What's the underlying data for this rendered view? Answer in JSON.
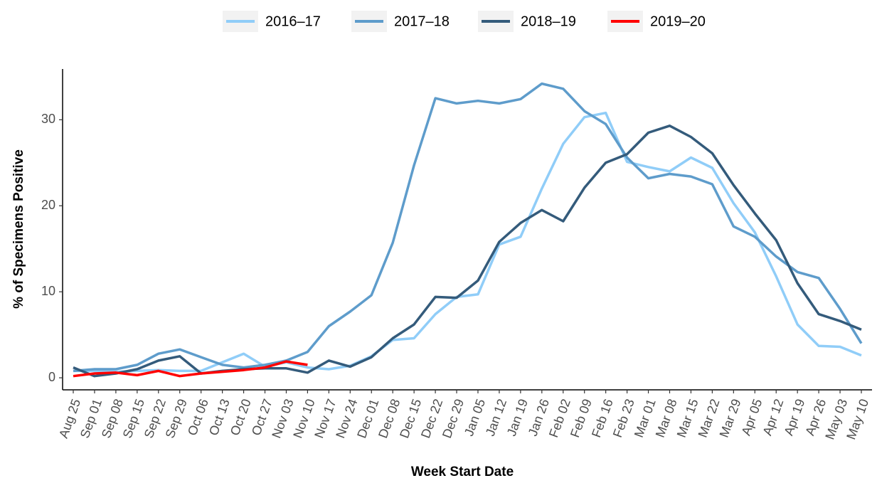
{
  "chart_data": {
    "type": "line",
    "x_label": "Week Start Date",
    "y_label": "% of Specimens Positive",
    "categories": [
      "Aug 25",
      "Sep 01",
      "Sep 08",
      "Sep 15",
      "Sep 22",
      "Sep 29",
      "Oct 06",
      "Oct 13",
      "Oct 20",
      "Oct 27",
      "Nov 03",
      "Nov 10",
      "Nov 17",
      "Nov 24",
      "Dec 01",
      "Dec 08",
      "Dec 15",
      "Dec 22",
      "Dec 29",
      "Jan 05",
      "Jan 12",
      "Jan 19",
      "Jan 26",
      "Feb 02",
      "Feb 09",
      "Feb 16",
      "Feb 23",
      "Mar 01",
      "Mar 08",
      "Mar 15",
      "Mar 22",
      "Mar 29",
      "Apr 05",
      "Apr 12",
      "Apr 19",
      "Apr 26",
      "May 03",
      "May 10"
    ],
    "series": [
      {
        "name": "2016–17",
        "color": "#90cdf8",
        "values": [
          0.8,
          0.8,
          0.7,
          0.8,
          0.9,
          0.8,
          0.8,
          1.8,
          2.8,
          1.3,
          1.8,
          1.2,
          1.0,
          1.4,
          2.5,
          4.4,
          4.6,
          7.4,
          9.4,
          9.7,
          15.5,
          16.4,
          22.0,
          27.2,
          30.3,
          30.8,
          25.1,
          24.5,
          24.0,
          25.6,
          24.4,
          20.3,
          16.9,
          11.8,
          6.2,
          3.7,
          3.6,
          2.6
        ]
      },
      {
        "name": "2017–18",
        "color": "#5e9ccb",
        "values": [
          0.8,
          1.0,
          1.0,
          1.5,
          2.8,
          3.3,
          2.4,
          1.5,
          1.2,
          1.5,
          2.0,
          3.0,
          6.0,
          7.7,
          9.6,
          15.7,
          24.7,
          32.5,
          31.9,
          32.2,
          31.9,
          32.4,
          34.2,
          33.6,
          31.0,
          29.5,
          25.6,
          23.2,
          23.7,
          23.4,
          22.5,
          17.6,
          16.4,
          14.1,
          12.3,
          11.6,
          8.0,
          4.0
        ]
      },
      {
        "name": "2018–19",
        "color": "#345b7b",
        "values": [
          1.2,
          0.2,
          0.5,
          1.0,
          2.0,
          2.5,
          0.5,
          0.8,
          1.0,
          1.1,
          1.1,
          0.6,
          2.0,
          1.3,
          2.4,
          4.6,
          6.2,
          9.4,
          9.3,
          11.3,
          15.8,
          18.0,
          19.5,
          18.2,
          22.1,
          25.0,
          26.0,
          28.5,
          29.3,
          28.0,
          26.1,
          22.4,
          19.1,
          16.0,
          11.0,
          7.4,
          6.6,
          5.6
        ]
      },
      {
        "name": "2019–20",
        "color": "#ff0000",
        "values": [
          0.2,
          0.5,
          0.6,
          0.3,
          0.8,
          0.2,
          0.5,
          0.7,
          0.9,
          1.2,
          1.9,
          1.5,
          null,
          null,
          null,
          null,
          null,
          null,
          null,
          null,
          null,
          null,
          null,
          null,
          null,
          null,
          null,
          null,
          null,
          null,
          null,
          null,
          null,
          null,
          null,
          null,
          null,
          null
        ]
      }
    ],
    "ylim": [
      -1.4,
      35.9
    ],
    "yticks": [
      0,
      10,
      20,
      30
    ],
    "grid": false,
    "legend": "top"
  }
}
